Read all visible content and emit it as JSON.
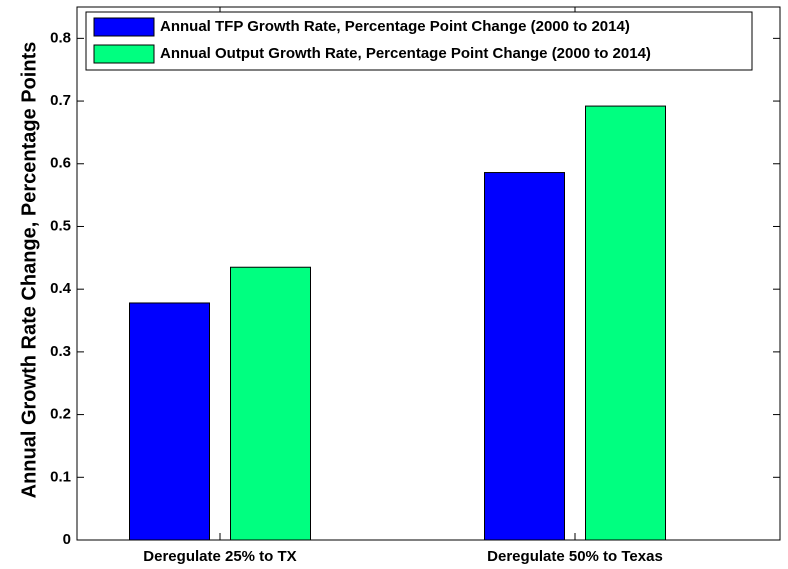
{
  "chart_data": {
    "type": "bar",
    "y_label": "Annual Growth Rate Change, Percentage Points",
    "categories": [
      "Deregulate 25% to TX",
      "Deregulate 50% to Texas"
    ],
    "series": [
      {
        "name": "Annual TFP Growth Rate, Percentage Point Change (2000 to 2014)",
        "color": "#0000ff",
        "values": [
          0.378,
          0.586
        ]
      },
      {
        "name": "Annual Output Growth Rate, Percentage Point Change (2000 to 2014)",
        "color": "#00ff80",
        "values": [
          0.435,
          0.692
        ]
      }
    ],
    "ylim": [
      0,
      0.85
    ],
    "yticks": [
      0,
      0.1,
      0.2,
      0.3,
      0.4,
      0.5,
      0.6,
      0.7,
      0.8
    ],
    "legend": "upper left"
  }
}
